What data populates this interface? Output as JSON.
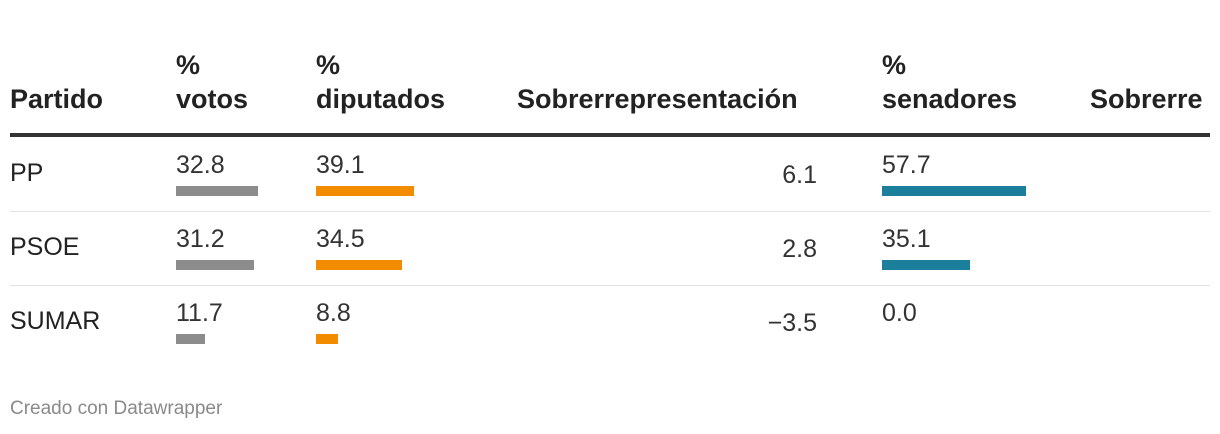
{
  "chart_data": {
    "type": "table",
    "columns": [
      "Partido",
      "% votos",
      "% diputados",
      "Sobrerrepresentación",
      "% senadores",
      "Sobrerre"
    ],
    "header_lines": [
      [
        "",
        "Partido"
      ],
      [
        "%",
        "votos"
      ],
      [
        "%",
        "diputados"
      ],
      [
        "",
        "Sobrerrepresentación"
      ],
      [
        "%",
        "senadores"
      ],
      [
        "",
        "Sobrerre"
      ]
    ],
    "rows": [
      {
        "partido": "PP",
        "votos": 32.8,
        "diputados": 39.1,
        "sobrerrep": "6.1",
        "senadores": 57.7,
        "votos_label": "32.8",
        "diputados_label": "39.1",
        "senadores_label": "57.7"
      },
      {
        "partido": "PSOE",
        "votos": 31.2,
        "diputados": 34.5,
        "sobrerrep": "2.8",
        "senadores": 35.1,
        "votos_label": "31.2",
        "diputados_label": "34.5",
        "senadores_label": "35.1"
      },
      {
        "partido": "SUMAR",
        "votos": 11.7,
        "diputados": 8.8,
        "sobrerrep": "−3.5",
        "senadores": 0.0,
        "votos_label": "11.7",
        "diputados_label": "8.8",
        "senadores_label": "0.0"
      }
    ],
    "bar_colors": {
      "votos": "#8c8c8c",
      "diputados": "#f38b00",
      "senadores": "#1b7f9c"
    }
  },
  "footer": "Creado con Datawrapper"
}
